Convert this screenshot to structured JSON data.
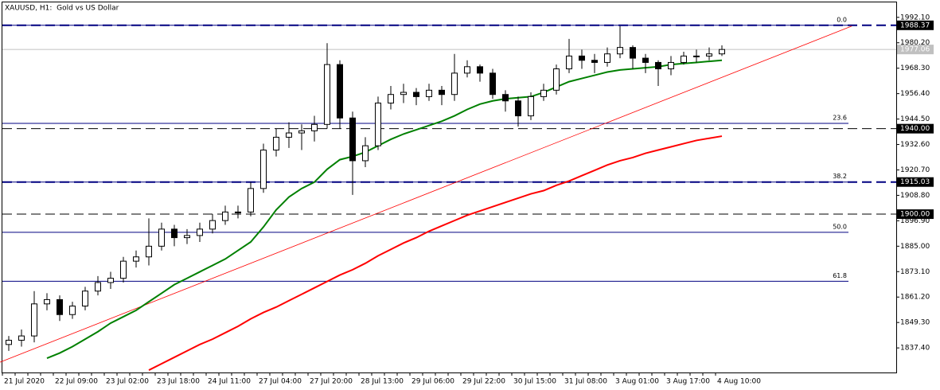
{
  "chart_data": {
    "type": "candlestick",
    "title": "XAUUSD, H1:  Gold vs US Dollar",
    "categories": [
      "21 Jul 2020",
      null,
      null,
      null,
      "22 Jul 09:00",
      null,
      null,
      null,
      "23 Jul 02:00",
      null,
      null,
      null,
      "23 Jul 18:00",
      null,
      null,
      null,
      "24 Jul 11:00",
      null,
      null,
      null,
      "27 Jul 04:00",
      null,
      null,
      null,
      "27 Jul 20:00",
      null,
      null,
      null,
      "28 Jul 13:00",
      null,
      null,
      null,
      "29 Jul 06:00",
      null,
      null,
      null,
      "29 Jul 22:00",
      null,
      null,
      null,
      "30 Jul 15:00",
      null,
      null,
      null,
      "31 Jul 08:00",
      null,
      null,
      null,
      "3 Aug 01:00",
      null,
      null,
      null,
      "3 Aug 17:00",
      null,
      null,
      null,
      "4 Aug 10:00"
    ],
    "open": [
      1839,
      1841,
      1843,
      1858,
      1860,
      1853,
      1857,
      1864,
      1868,
      1870,
      1878,
      1880,
      1885,
      1893,
      1889,
      1890,
      1893,
      1897,
      1901,
      1901,
      1912,
      1930,
      1936,
      1938,
      1939,
      1942,
      1970,
      1945,
      1925,
      1932,
      1952,
      1956,
      1957,
      1955,
      1958,
      1956,
      1966,
      1969,
      1966,
      1956,
      1953,
      1946,
      1955,
      1958,
      1968,
      1974,
      1972,
      1971,
      1975,
      1978,
      1973,
      1971,
      1968,
      1971,
      1974,
      1974,
      1975
    ],
    "high": [
      1843,
      1846,
      1864,
      1863,
      1862,
      1859,
      1866,
      1871,
      1873,
      1880,
      1883,
      1898,
      1896,
      1895,
      1893,
      1896,
      1900,
      1904,
      1904,
      1915,
      1933,
      1940,
      1943,
      1942,
      1946,
      1980,
      1972,
      1948,
      1936,
      1955,
      1960,
      1961,
      1959,
      1961,
      1960,
      1975,
      1972,
      1970,
      1968,
      1958,
      1955,
      1957,
      1961,
      1970,
      1982,
      1977,
      1975,
      1978,
      1988,
      1979,
      1975,
      1972,
      1974,
      1976,
      1977,
      1978,
      1979
    ],
    "low": [
      1836,
      1838,
      1840,
      1855,
      1850,
      1851,
      1855,
      1862,
      1865,
      1868,
      1875,
      1876,
      1883,
      1885,
      1886,
      1887,
      1891,
      1895,
      1898,
      1899,
      1910,
      1927,
      1931,
      1930,
      1934,
      1940,
      1940,
      1909,
      1922,
      1930,
      1949,
      1952,
      1951,
      1953,
      1951,
      1953,
      1964,
      1962,
      1954,
      1948,
      1941,
      1944,
      1953,
      1956,
      1966,
      1968,
      1966,
      1969,
      1973,
      1968,
      1966,
      1960,
      1965,
      1970,
      1971,
      1972,
      1974
    ],
    "close": [
      1841,
      1843,
      1858,
      1860,
      1853,
      1857,
      1864,
      1868,
      1870,
      1878,
      1880,
      1885,
      1893,
      1889,
      1890,
      1893,
      1897,
      1901,
      1901,
      1912,
      1930,
      1936,
      1938,
      1939,
      1942,
      1970,
      1945,
      1925,
      1932,
      1952,
      1956,
      1957,
      1955,
      1958,
      1956,
      1966,
      1969,
      1966,
      1956,
      1953,
      1946,
      1955,
      1958,
      1968,
      1974,
      1972,
      1971,
      1975,
      1978,
      1973,
      1971,
      1968,
      1971,
      1974,
      1974,
      1975,
      1977.06
    ],
    "lines": [
      {
        "color": "#008000",
        "values": [
          null,
          null,
          null,
          1832.6,
          1835,
          1838,
          1841.5,
          1845,
          1849,
          1852,
          1855,
          1859,
          1863,
          1867,
          1870,
          1873,
          1876,
          1879,
          1883,
          1887,
          1894,
          1902,
          1908,
          1912,
          1915,
          1921,
          1925.5,
          1927,
          1929,
          1932,
          1935,
          1937.5,
          1939.5,
          1941.5,
          1943.5,
          1946,
          1949,
          1951.5,
          1953,
          1954,
          1954.5,
          1955,
          1957,
          1959.5,
          1962,
          1963.5,
          1965,
          1966.5,
          1967.5,
          1968,
          1968.5,
          1969,
          1970,
          1970.5,
          1971,
          1971.5,
          1972
        ]
      },
      {
        "color": "#ff0000",
        "values": [
          null,
          null,
          null,
          null,
          null,
          null,
          null,
          null,
          null,
          null,
          null,
          1827,
          1830,
          1833,
          1836,
          1839,
          1841.5,
          1844.5,
          1847.5,
          1851,
          1854,
          1856.5,
          1859.5,
          1862.5,
          1865.5,
          1868.5,
          1871.5,
          1874,
          1877,
          1880.5,
          1883.5,
          1886.5,
          1889,
          1892,
          1894.5,
          1897,
          1899.5,
          1901.5,
          1903.5,
          1905.5,
          1907.5,
          1909.5,
          1911,
          1913.5,
          1915.5,
          1918,
          1920.5,
          1923,
          1925,
          1926.5,
          1928.5,
          1930,
          1931.5,
          1933,
          1934.5,
          1935.5,
          1936.5
        ]
      }
    ],
    "trendline": {
      "color": "#ff0000",
      "from": [
        -0.7,
        1830.7
      ],
      "to": [
        66.2,
        1988.0
      ]
    },
    "levels": [
      {
        "price": {
          "value": 1988.37,
          "label": "1988.37"
        },
        "color": "#000080"
      },
      {
        "price": {
          "value": 1940.0,
          "label": "1940.00"
        },
        "color": "#000000"
      },
      {
        "price": {
          "value": 1915.03,
          "label": "1915.03"
        },
        "color": "#000080"
      },
      {
        "price": {
          "value": 1900.0,
          "label": "1900.00"
        },
        "color": "#000000"
      }
    ],
    "last_price": {
      "value": 1977.06,
      "label": "1977.06"
    },
    "fibonacci": {
      "color": "#000080",
      "levels": [
        {
          "level": {
            "value": 0,
            "label": "0.0"
          },
          "price": 1988.37
        },
        {
          "level": {
            "value": 23.6,
            "label": "23.6"
          },
          "price": 1942.5
        },
        {
          "level": {
            "value": 38.2,
            "label": "38.2"
          },
          "price": 1915.03
        },
        {
          "level": {
            "value": 50,
            "label": "50.0"
          },
          "price": 1891.5
        },
        {
          "level": {
            "value": 61.8,
            "label": "61.8"
          },
          "price": 1868.6
        }
      ]
    },
    "ylim": [
      1825.9,
      1999.1
    ],
    "yticks": [
      {
        "value": 1992.1,
        "label": "1992.10"
      },
      {
        "value": 1980.2,
        "label": "1980.20"
      },
      {
        "value": 1968.3,
        "label": "1968.30"
      },
      {
        "value": 1956.4,
        "label": "1956.40"
      },
      {
        "value": 1944.5,
        "label": "1944.50"
      },
      {
        "value": 1932.6,
        "label": "1932.60"
      },
      {
        "value": 1920.7,
        "label": "1920.70"
      },
      {
        "value": 1908.8,
        "label": "1908.80"
      },
      {
        "value": 1896.9,
        "label": "1896.90"
      },
      {
        "value": 1885,
        "label": "1885.00"
      },
      {
        "value": 1873.1,
        "label": "1873.10"
      },
      {
        "value": 1861.2,
        "label": "1861.20"
      },
      {
        "value": 1849.3,
        "label": "1849.30"
      },
      {
        "value": 1837.4,
        "label": "1837.40"
      }
    ]
  }
}
